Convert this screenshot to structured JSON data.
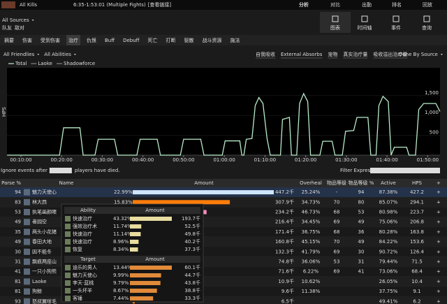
{
  "header": {
    "left": "All Kills",
    "range": "6:35-1:53:01 (Multiple Fights)",
    "link": "[查看链接]",
    "nav": [
      "分析",
      "对比",
      "出勤",
      "排名",
      "回放"
    ],
    "active_nav": 0
  },
  "source": {
    "title": "All Sources",
    "sub": [
      "队友",
      "敌对"
    ],
    "views": [
      "图表",
      "时间轴",
      "事件",
      "查询"
    ],
    "active_view": 0
  },
  "tabs": {
    "items": [
      "摘要",
      "伤害",
      "受到伤害",
      "治疗",
      "仇恨",
      "Buff",
      "Debuff",
      "死亡",
      "打断",
      "驱散",
      "战斗资源",
      "施法"
    ],
    "active": 3
  },
  "filters": {
    "left": [
      "All Friendlies",
      "All Abilities"
    ],
    "toggles": [
      "自我吸收",
      "External Absorbs",
      "宠物",
      "真实治疗量",
      "吸收溢出治疗量"
    ],
    "group": "Done By Source"
  },
  "chart_data": {
    "type": "line",
    "y_label": "HPS",
    "legend_extra": [
      "Laoke",
      "Shadowforce"
    ],
    "xlim": [
      6.58,
      113.02
    ],
    "xticks": [
      {
        "value": 10,
        "label": "00:10:00"
      },
      {
        "value": 20,
        "label": "00:20:00"
      },
      {
        "value": 30,
        "label": "00:30:00"
      },
      {
        "value": 40,
        "label": "00:40:00"
      },
      {
        "value": 50,
        "label": "00:50:00"
      },
      {
        "value": 60,
        "label": "01:00:00"
      },
      {
        "value": 70,
        "label": "01:10:00"
      },
      {
        "value": 80,
        "label": "01:20:00"
      },
      {
        "value": 90,
        "label": "01:30:00"
      },
      {
        "value": 100,
        "label": "01:40:00"
      },
      {
        "value": 110,
        "label": "01:50:00"
      }
    ],
    "ylim": [
      0,
      2200
    ],
    "yticks": [
      500,
      {
        "value": 1000,
        "label": "1,000"
      },
      {
        "value": 1500,
        "label": "1,500"
      }
    ],
    "x": [
      6.6,
      19.5,
      20.5,
      24.5,
      25.3,
      28.2,
      29,
      33,
      33.8,
      38.5,
      39.3,
      43.5,
      44.3,
      49.2,
      50,
      54.2,
      55,
      59.5,
      60.2,
      63.8,
      64.3,
      64.8,
      65.4,
      66.8,
      67.6,
      68.5,
      69.5,
      70.5,
      71.3,
      73.8,
      74.3,
      76,
      76.5,
      77.8,
      78.5,
      79.5,
      80.5,
      81.2,
      83.5,
      84.2,
      86.5,
      87.2,
      89,
      89.8,
      91.8,
      92.6,
      95.3,
      96,
      97.3,
      98,
      99,
      100.3,
      101,
      101.8,
      104.8,
      105.4,
      107,
      107.8,
      109,
      112,
      113
    ],
    "series": [
      {
        "name": "Total",
        "color": "#b9ecc9",
        "values": [
          0,
          0,
          690,
          690,
          0,
          0,
          400,
          400,
          0,
          0,
          400,
          400,
          0,
          0,
          400,
          400,
          0,
          0,
          360,
          360,
          0,
          0,
          400,
          420,
          1250,
          1450,
          1300,
          420,
          0,
          0,
          900,
          950,
          0,
          0,
          1300,
          1550,
          1350,
          0,
          0,
          350,
          350,
          0,
          0,
          600,
          620,
          950,
          950,
          0,
          0,
          1250,
          1480,
          1350,
          0,
          200,
          200,
          0,
          0,
          1150,
          1300,
          1300,
          1100
        ]
      }
    ]
  },
  "options": {
    "ignore_before": "Ignore events after",
    "ignore_after": "players have died.",
    "filter": "Filter Expression:"
  },
  "table": {
    "columns": [
      "Parse %",
      "Name",
      "Amount",
      "Overheal",
      "物品等级",
      "物品等级 %",
      "Active",
      "HPS"
    ],
    "rows": [
      {
        "parse": "94",
        "name": "魅力天使心",
        "color": "#ffffff",
        "pct": "22.99%",
        "amount": 447.2,
        "amount_label": "447.2千",
        "overheal": "25.24%",
        "ilvl": "-",
        "ilvl_pct": "94",
        "active": "87.38%",
        "hps": "427.2"
      },
      {
        "parse": "83",
        "name": "林大西",
        "color": "#ff7d0a",
        "pct": "15.83%",
        "amount": 307.9,
        "amount_label": "307.9千",
        "overheal": "34.73%",
        "ilvl": "70",
        "ilvl_pct": "80",
        "active": "85.07%",
        "hps": "294.1"
      },
      {
        "parse": "53",
        "name": "执笔画颜眼",
        "color": "#f58cba",
        "amount": 234.2,
        "amount_label": "234.2千",
        "overheal": "46.73%",
        "ilvl": "68",
        "ilvl_pct": "53",
        "active": "80.98%",
        "hps": "223.7"
      },
      {
        "parse": "49",
        "name": "者园空",
        "color": "#ffffff",
        "amount": 216.4,
        "amount_label": "216.4千",
        "overheal": "34.45%",
        "ilvl": "69",
        "ilvl_pct": "49",
        "active": "75.06%",
        "hps": "206.8"
      },
      {
        "parse": "35",
        "name": "两头小花猪",
        "color": "#f58cba",
        "amount": 171.4,
        "amount_label": "171.4千",
        "overheal": "36.75%",
        "ilvl": "68",
        "ilvl_pct": "36",
        "active": "80.28%",
        "hps": "163.8"
      },
      {
        "parse": "49",
        "name": "春田大地",
        "color": "#0070de",
        "amount": 160.8,
        "amount_label": "160.8千",
        "overheal": "45.15%",
        "ilvl": "70",
        "ilvl_pct": "49",
        "active": "84.22%",
        "hps": "153.6"
      },
      {
        "parse": "30",
        "name": "因不能冬",
        "color": "#0070de",
        "amount": 132.3,
        "amount_label": "132.3千",
        "overheal": "41.79%",
        "ilvl": "69",
        "ilvl_pct": "30",
        "active": "90.72%",
        "hps": "126.4"
      },
      {
        "parse": "31",
        "name": "飘痕两座山",
        "color": "#f58cba",
        "amount": 74.8,
        "amount_label": "74.8千",
        "overheal": "36.06%",
        "ilvl": "53",
        "ilvl_pct": "31",
        "active": "79.44%",
        "hps": "71.5"
      },
      {
        "parse": "41",
        "name": "一只小狗熊",
        "color": "#ff7d0a",
        "amount": 71.6,
        "amount_label": "71.6千",
        "overheal": "6.22%",
        "ilvl": "69",
        "ilvl_pct": "41",
        "active": "73.06%",
        "hps": "68.4"
      },
      {
        "parse": "81",
        "name": "Laoke",
        "color": "#ffffff",
        "amount": 10.9,
        "amount_label": "10.9千",
        "overheal": "10.62%",
        "active": "26.05%",
        "hps": "10.4"
      },
      {
        "parse": "81",
        "name": "狗鲸",
        "color": "#c79c6e",
        "amount": 9.6,
        "amount_label": "9.6千",
        "overheal": "11.38%",
        "active": "37.75%",
        "hps": "9.1"
      },
      {
        "parse": "93",
        "name": "怒叔翼嗲毛",
        "color": "#ff7d0a",
        "amount": 6.5,
        "amount_label": "6.5千",
        "active": "49.41%",
        "hps": "6.2"
      }
    ]
  },
  "popup": {
    "ability": {
      "headers": [
        "Ability",
        "Amount"
      ],
      "rows": [
        {
          "name": "快速治疗",
          "pct": 43.32,
          "pct_label": "43.32%",
          "amount_label": "193.7千"
        },
        {
          "name": "强效治疗术",
          "pct": 11.74,
          "pct_label": "11.74%",
          "amount_label": "52.5千"
        },
        {
          "name": "快速治疗",
          "pct": 11.14,
          "pct_label": "11.14%",
          "amount_label": "49.8千"
        },
        {
          "name": "快速治疗",
          "pct": 8.96,
          "pct_label": "8.96%",
          "amount_label": "40.2千"
        },
        {
          "name": "恢复",
          "pct": 8.34,
          "pct_label": "8.34%",
          "amount_label": "37.3千"
        }
      ]
    },
    "target": {
      "headers": [
        "Target",
        "Amount"
      ],
      "rows": [
        {
          "name": "迪乐的男人",
          "pct": 13.44,
          "pct_label": "13.44%",
          "amount_label": "60.1千"
        },
        {
          "name": "魅力天使心",
          "pct": 9.99,
          "pct_label": "9.99%",
          "amount_label": "44.7千"
        },
        {
          "name": "李天·蓝桃",
          "pct": 9.79,
          "pct_label": "9.79%",
          "amount_label": "43.8千"
        },
        {
          "name": "一头坏羊",
          "pct": 8.67,
          "pct_label": "8.67%",
          "amount_label": "38.8千"
        },
        {
          "name": "客锤",
          "pct": 7.44,
          "pct_label": "7.44%",
          "amount_label": "33.3千"
        }
      ]
    }
  }
}
